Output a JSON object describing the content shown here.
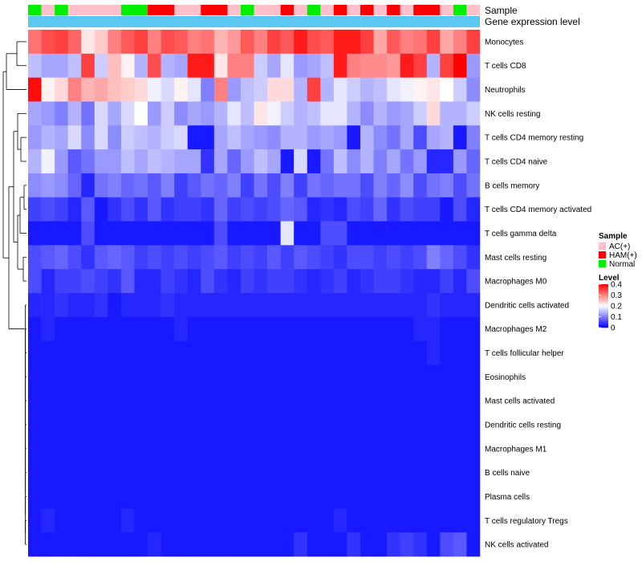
{
  "chart_data": {
    "type": "heatmap",
    "title": "",
    "annotation_track_labels": [
      "Sample",
      "Gene expression level"
    ],
    "rows": [
      "Monocytes",
      "T cells CD8",
      "Neutrophils",
      "NK cells resting",
      "T cells CD4 memory resting",
      "T cells CD4 naive",
      "B cells memory",
      "T cells CD4 memory activated",
      "T cells gamma delta",
      "Mast cells resting",
      "Macrophages M0",
      "Dendritic cells activated",
      "Macrophages M2",
      "T cells follicular helper",
      "Eosinophils",
      "Mast cells activated",
      "Dendritic cells resting",
      "Macrophages M1",
      "B cells naive",
      "Plasma cells",
      "T cells regulatory  Tregs",
      "NK cells activated"
    ],
    "sample_groups": [
      "N",
      "A",
      "N",
      "A",
      "A",
      "A",
      "A",
      "N",
      "N",
      "H",
      "H",
      "A",
      "A",
      "H",
      "H",
      "A",
      "N",
      "A",
      "A",
      "H",
      "A",
      "N",
      "A",
      "H",
      "A",
      "H",
      "A",
      "H",
      "A",
      "H",
      "H",
      "A",
      "N",
      "A"
    ],
    "levels": [
      [
        0.31,
        0.34,
        0.35,
        0.32,
        0.22,
        0.24,
        0.3,
        0.33,
        0.35,
        0.3,
        0.34,
        0.33,
        0.3,
        0.31,
        0.26,
        0.28,
        0.33,
        0.3,
        0.35,
        0.33,
        0.38,
        0.34,
        0.33,
        0.38,
        0.38,
        0.35,
        0.27,
        0.33,
        0.3,
        0.31,
        0.35,
        0.27,
        0.3,
        0.35
      ],
      [
        0.15,
        0.13,
        0.13,
        0.15,
        0.35,
        0.16,
        0.25,
        0.21,
        0.14,
        0.34,
        0.14,
        0.13,
        0.38,
        0.38,
        0.22,
        0.3,
        0.3,
        0.16,
        0.13,
        0.18,
        0.12,
        0.13,
        0.15,
        0.38,
        0.3,
        0.29,
        0.29,
        0.28,
        0.38,
        0.35,
        0.14,
        0.35,
        0.4,
        0.12
      ],
      [
        0.39,
        0.21,
        0.23,
        0.3,
        0.26,
        0.27,
        0.25,
        0.24,
        0.23,
        0.19,
        0.17,
        0.21,
        0.18,
        0.1,
        0.3,
        0.12,
        0.15,
        0.16,
        0.23,
        0.23,
        0.14,
        0.35,
        0.14,
        0.18,
        0.16,
        0.14,
        0.15,
        0.18,
        0.19,
        0.21,
        0.22,
        0.2,
        0.16,
        0.11
      ],
      [
        0.13,
        0.12,
        0.1,
        0.14,
        0.09,
        0.17,
        0.13,
        0.17,
        0.2,
        0.12,
        0.16,
        0.11,
        0.13,
        0.12,
        0.14,
        0.18,
        0.15,
        0.22,
        0.19,
        0.16,
        0.14,
        0.15,
        0.18,
        0.18,
        0.14,
        0.11,
        0.14,
        0.12,
        0.13,
        0.16,
        0.23,
        0.14,
        0.14,
        0.16
      ],
      [
        0.12,
        0.14,
        0.13,
        0.17,
        0.11,
        0.17,
        0.11,
        0.16,
        0.15,
        0.14,
        0.16,
        0.17,
        0.02,
        0.02,
        0.13,
        0.15,
        0.13,
        0.12,
        0.11,
        0.14,
        0.14,
        0.12,
        0.13,
        0.12,
        0.02,
        0.14,
        0.11,
        0.09,
        0.13,
        0.06,
        0.13,
        0.14,
        0.02,
        0.1
      ],
      [
        0.14,
        0.19,
        0.12,
        0.07,
        0.09,
        0.12,
        0.12,
        0.15,
        0.13,
        0.15,
        0.14,
        0.13,
        0.13,
        0.04,
        0.13,
        0.08,
        0.12,
        0.15,
        0.13,
        0.02,
        0.17,
        0.02,
        0.09,
        0.15,
        0.11,
        0.14,
        0.1,
        0.13,
        0.09,
        0.12,
        0.03,
        0.03,
        0.12,
        0.08
      ],
      [
        0.11,
        0.12,
        0.11,
        0.08,
        0.03,
        0.09,
        0.1,
        0.08,
        0.09,
        0.07,
        0.1,
        0.05,
        0.07,
        0.09,
        0.08,
        0.1,
        0.05,
        0.09,
        0.06,
        0.1,
        0.05,
        0.09,
        0.08,
        0.09,
        0.09,
        0.06,
        0.1,
        0.08,
        0.11,
        0.06,
        0.09,
        0.1,
        0.06,
        0.09
      ],
      [
        0.05,
        0.06,
        0.05,
        0.03,
        0.07,
        0.02,
        0.04,
        0.06,
        0.04,
        0.07,
        0.04,
        0.05,
        0.05,
        0.04,
        0.08,
        0.05,
        0.06,
        0.05,
        0.06,
        0.08,
        0.07,
        0.03,
        0.04,
        0.03,
        0.06,
        0.05,
        0.08,
        0.04,
        0.06,
        0.05,
        0.05,
        0.02,
        0.06,
        0.03
      ],
      [
        0.02,
        0.02,
        0.02,
        0.02,
        0.06,
        0.02,
        0.02,
        0.02,
        0.02,
        0.02,
        0.02,
        0.02,
        0.02,
        0.02,
        0.06,
        0.02,
        0.02,
        0.02,
        0.02,
        0.18,
        0.02,
        0.02,
        0.06,
        0.06,
        0.02,
        0.02,
        0.02,
        0.02,
        0.02,
        0.02,
        0.02,
        0.02,
        0.02,
        0.02
      ],
      [
        0.06,
        0.07,
        0.08,
        0.06,
        0.04,
        0.07,
        0.08,
        0.07,
        0.05,
        0.06,
        0.05,
        0.06,
        0.05,
        0.06,
        0.07,
        0.05,
        0.06,
        0.05,
        0.07,
        0.05,
        0.07,
        0.06,
        0.05,
        0.04,
        0.06,
        0.06,
        0.05,
        0.06,
        0.05,
        0.06,
        0.1,
        0.08,
        0.06,
        0.04
      ],
      [
        0.06,
        0.03,
        0.05,
        0.05,
        0.06,
        0.05,
        0.04,
        0.07,
        0.03,
        0.03,
        0.05,
        0.04,
        0.03,
        0.06,
        0.04,
        0.03,
        0.05,
        0.04,
        0.05,
        0.05,
        0.04,
        0.03,
        0.04,
        0.05,
        0.03,
        0.04,
        0.05,
        0.05,
        0.04,
        0.03,
        0.03,
        0.05,
        0.03,
        0.06
      ],
      [
        0.03,
        0.03,
        0.04,
        0.03,
        0.03,
        0.04,
        0.02,
        0.03,
        0.03,
        0.03,
        0.04,
        0.03,
        0.03,
        0.03,
        0.03,
        0.03,
        0.03,
        0.03,
        0.03,
        0.03,
        0.03,
        0.03,
        0.03,
        0.03,
        0.03,
        0.03,
        0.03,
        0.03,
        0.03,
        0.03,
        0.04,
        0.03,
        0.03,
        0.03
      ],
      [
        0.02,
        0.03,
        0.02,
        0.02,
        0.02,
        0.02,
        0.02,
        0.02,
        0.02,
        0.02,
        0.02,
        0.03,
        0.02,
        0.02,
        0.02,
        0.02,
        0.02,
        0.02,
        0.02,
        0.02,
        0.02,
        0.02,
        0.02,
        0.02,
        0.02,
        0.02,
        0.02,
        0.02,
        0.02,
        0.03,
        0.03,
        0.02,
        0.02,
        0.02
      ],
      [
        0.02,
        0.02,
        0.02,
        0.02,
        0.02,
        0.02,
        0.02,
        0.02,
        0.02,
        0.02,
        0.02,
        0.02,
        0.02,
        0.02,
        0.02,
        0.02,
        0.02,
        0.02,
        0.02,
        0.02,
        0.02,
        0.02,
        0.02,
        0.02,
        0.02,
        0.02,
        0.02,
        0.02,
        0.02,
        0.02,
        0.03,
        0.02,
        0.02,
        0.02
      ],
      [
        0.02,
        0.02,
        0.02,
        0.02,
        0.02,
        0.02,
        0.02,
        0.02,
        0.02,
        0.02,
        0.02,
        0.02,
        0.02,
        0.02,
        0.02,
        0.02,
        0.02,
        0.02,
        0.02,
        0.02,
        0.02,
        0.02,
        0.02,
        0.02,
        0.02,
        0.02,
        0.02,
        0.02,
        0.02,
        0.02,
        0.02,
        0.02,
        0.02,
        0.02
      ],
      [
        0.02,
        0.02,
        0.02,
        0.02,
        0.02,
        0.02,
        0.02,
        0.02,
        0.02,
        0.02,
        0.02,
        0.02,
        0.02,
        0.02,
        0.02,
        0.02,
        0.02,
        0.02,
        0.02,
        0.02,
        0.02,
        0.02,
        0.02,
        0.02,
        0.02,
        0.02,
        0.02,
        0.02,
        0.02,
        0.02,
        0.02,
        0.02,
        0.02,
        0.02
      ],
      [
        0.02,
        0.02,
        0.02,
        0.02,
        0.02,
        0.02,
        0.02,
        0.02,
        0.02,
        0.02,
        0.02,
        0.02,
        0.02,
        0.02,
        0.02,
        0.02,
        0.02,
        0.02,
        0.02,
        0.02,
        0.02,
        0.02,
        0.02,
        0.02,
        0.02,
        0.02,
        0.02,
        0.02,
        0.02,
        0.02,
        0.02,
        0.02,
        0.02,
        0.02
      ],
      [
        0.02,
        0.02,
        0.02,
        0.02,
        0.02,
        0.02,
        0.02,
        0.02,
        0.02,
        0.02,
        0.02,
        0.02,
        0.02,
        0.02,
        0.02,
        0.02,
        0.02,
        0.02,
        0.02,
        0.02,
        0.02,
        0.02,
        0.02,
        0.02,
        0.02,
        0.02,
        0.02,
        0.02,
        0.02,
        0.02,
        0.02,
        0.02,
        0.02,
        0.02
      ],
      [
        0.02,
        0.02,
        0.02,
        0.02,
        0.02,
        0.02,
        0.02,
        0.02,
        0.02,
        0.02,
        0.02,
        0.02,
        0.02,
        0.02,
        0.02,
        0.02,
        0.02,
        0.02,
        0.02,
        0.02,
        0.02,
        0.02,
        0.02,
        0.02,
        0.02,
        0.02,
        0.02,
        0.02,
        0.02,
        0.02,
        0.02,
        0.02,
        0.02,
        0.02
      ],
      [
        0.02,
        0.02,
        0.02,
        0.02,
        0.02,
        0.02,
        0.02,
        0.02,
        0.02,
        0.02,
        0.02,
        0.02,
        0.02,
        0.02,
        0.02,
        0.02,
        0.02,
        0.02,
        0.02,
        0.02,
        0.02,
        0.02,
        0.02,
        0.02,
        0.02,
        0.02,
        0.02,
        0.02,
        0.02,
        0.02,
        0.02,
        0.02,
        0.02,
        0.02
      ],
      [
        0.02,
        0.03,
        0.02,
        0.02,
        0.02,
        0.02,
        0.02,
        0.03,
        0.02,
        0.02,
        0.02,
        0.02,
        0.02,
        0.02,
        0.02,
        0.02,
        0.02,
        0.02,
        0.02,
        0.02,
        0.02,
        0.02,
        0.02,
        0.03,
        0.02,
        0.02,
        0.02,
        0.02,
        0.02,
        0.02,
        0.02,
        0.02,
        0.02,
        0.02
      ],
      [
        0.02,
        0.02,
        0.02,
        0.02,
        0.02,
        0.02,
        0.02,
        0.02,
        0.02,
        0.03,
        0.02,
        0.02,
        0.02,
        0.02,
        0.02,
        0.02,
        0.02,
        0.02,
        0.02,
        0.02,
        0.04,
        0.02,
        0.02,
        0.02,
        0.04,
        0.02,
        0.02,
        0.04,
        0.05,
        0.04,
        0.02,
        0.06,
        0.07,
        0.02
      ]
    ],
    "legend": {
      "sample": {
        "title": "Sample",
        "items": [
          {
            "key": "A",
            "label": "AC(+)",
            "color": "#ffc0cb"
          },
          {
            "key": "H",
            "label": "HAM(+)",
            "color": "#ff0000"
          },
          {
            "key": "N",
            "label": "Normal",
            "color": "#00ee00"
          }
        ]
      },
      "level": {
        "title": "Level",
        "ticks": [
          "0.4",
          "0.3",
          "0.2",
          "0.1",
          "0"
        ],
        "range": [
          0,
          0.4
        ]
      }
    },
    "colors": {
      "low": "#0000ff",
      "mid": "#ffffff",
      "high": "#ff0000",
      "gene_expression_bar": "#5bc8f2"
    }
  }
}
